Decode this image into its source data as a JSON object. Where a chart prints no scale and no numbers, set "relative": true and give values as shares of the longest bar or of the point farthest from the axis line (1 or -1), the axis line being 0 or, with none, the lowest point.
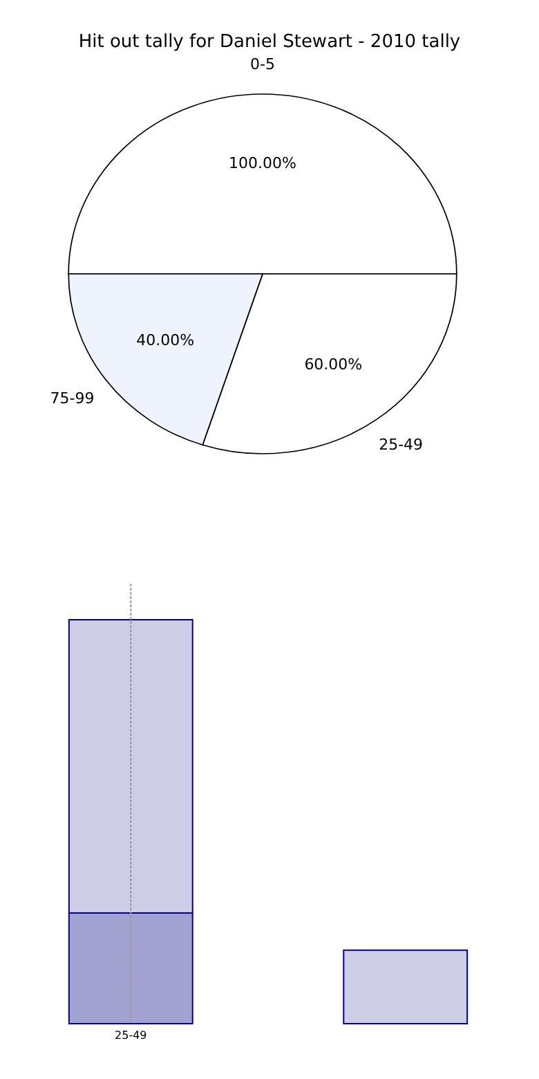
{
  "chart_data": [
    {
      "type": "pie",
      "title": "Hit out tally for Daniel Stewart - 2010 tally",
      "categories": [
        "0-5",
        "25-49",
        "75-99"
      ],
      "values": [
        100,
        60,
        40
      ],
      "value_labels": [
        "100.00%",
        "60.00%",
        "40.00%"
      ],
      "colors": [
        "#ffffff",
        "#ffffff",
        "#eef3fd"
      ]
    },
    {
      "type": "bar",
      "relative": true,
      "stacked": true,
      "categories": [
        "25-49",
        null
      ],
      "ref_lines": [
        {
          "axis": "x",
          "value": "25-49",
          "color": "#999999",
          "line_style": "dotted"
        }
      ],
      "series": [
        {
          "color": "#a3a3d1",
          "values": [
            0.274,
            0
          ]
        },
        {
          "color": "#cdcde5",
          "values": [
            0.726,
            0.182
          ]
        }
      ]
    }
  ]
}
